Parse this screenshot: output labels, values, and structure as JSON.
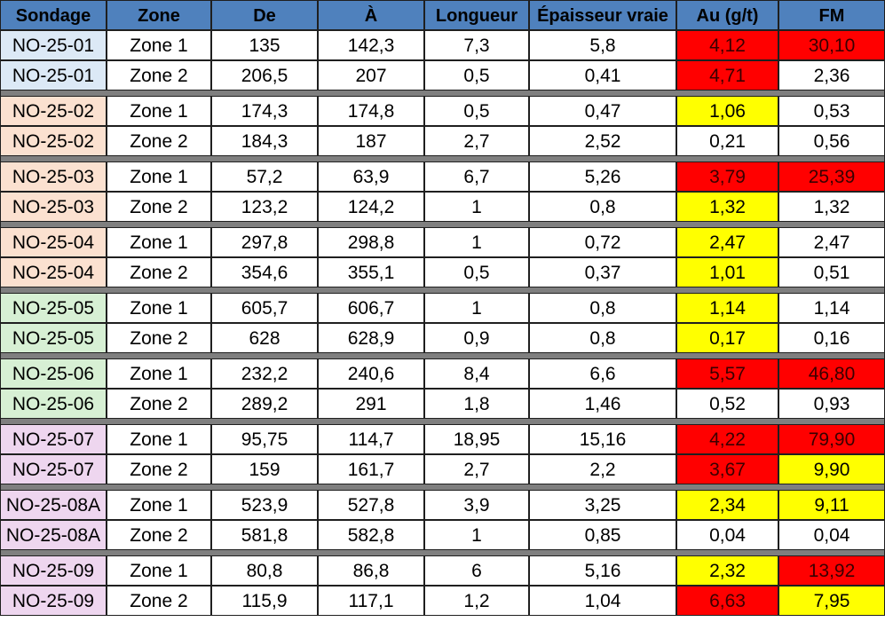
{
  "colors": {
    "header": "#4f81bd",
    "separator": "#7f7f7f",
    "red": "#ff0000",
    "yellow": "#ffff00",
    "blue": "#dce9f6",
    "orange": "#fbe1d0",
    "green": "#d7f0d4",
    "purple": "#eed6ef"
  },
  "headers": [
    "Sondage",
    "Zone",
    "De",
    "À",
    "Longueur",
    "Épaisseur vraie",
    "Au (g/t)",
    "FM"
  ],
  "groups": [
    {
      "tint": "blue",
      "rows": [
        {
          "sondage": "NO-25-01",
          "zone": "Zone 1",
          "de": "135",
          "a": "142,3",
          "longueur": "7,3",
          "epaisseur": "5,8",
          "au": "4,12",
          "au_hl": "red",
          "fm": "30,10",
          "fm_hl": "red"
        },
        {
          "sondage": "NO-25-01",
          "zone": "Zone 2",
          "de": "206,5",
          "a": "207",
          "longueur": "0,5",
          "epaisseur": "0,41",
          "au": "4,71",
          "au_hl": "red",
          "fm": "2,36",
          "fm_hl": ""
        }
      ]
    },
    {
      "tint": "orange",
      "rows": [
        {
          "sondage": "NO-25-02",
          "zone": "Zone 1",
          "de": "174,3",
          "a": "174,8",
          "longueur": "0,5",
          "epaisseur": "0,47",
          "au": "1,06",
          "au_hl": "yellow",
          "fm": "0,53",
          "fm_hl": ""
        },
        {
          "sondage": "NO-25-02",
          "zone": "Zone 2",
          "de": "184,3",
          "a": "187",
          "longueur": "2,7",
          "epaisseur": "2,52",
          "au": "0,21",
          "au_hl": "",
          "fm": "0,56",
          "fm_hl": ""
        }
      ]
    },
    {
      "tint": "orange",
      "rows": [
        {
          "sondage": "NO-25-03",
          "zone": "Zone 1",
          "de": "57,2",
          "a": "63,9",
          "longueur": "6,7",
          "epaisseur": "5,26",
          "au": "3,79",
          "au_hl": "red",
          "fm": "25,39",
          "fm_hl": "red"
        },
        {
          "sondage": "NO-25-03",
          "zone": "Zone 2",
          "de": "123,2",
          "a": "124,2",
          "longueur": "1",
          "epaisseur": "0,8",
          "au": "1,32",
          "au_hl": "yellow",
          "fm": "1,32",
          "fm_hl": ""
        }
      ]
    },
    {
      "tint": "orange",
      "rows": [
        {
          "sondage": "NO-25-04",
          "zone": "Zone 1",
          "de": "297,8",
          "a": "298,8",
          "longueur": "1",
          "epaisseur": "0,72",
          "au": "2,47",
          "au_hl": "yellow",
          "fm": "2,47",
          "fm_hl": ""
        },
        {
          "sondage": "NO-25-04",
          "zone": "Zone 2",
          "de": "354,6",
          "a": "355,1",
          "longueur": "0,5",
          "epaisseur": "0,37",
          "au": "1,01",
          "au_hl": "yellow",
          "fm": "0,51",
          "fm_hl": ""
        }
      ]
    },
    {
      "tint": "green",
      "rows": [
        {
          "sondage": "NO-25-05",
          "zone": "Zone 1",
          "de": "605,7",
          "a": "606,7",
          "longueur": "1",
          "epaisseur": "0,8",
          "au": "1,14",
          "au_hl": "yellow",
          "fm": "1,14",
          "fm_hl": ""
        },
        {
          "sondage": "NO-25-05",
          "zone": "Zone 2",
          "de": "628",
          "a": "628,9",
          "longueur": "0,9",
          "epaisseur": "0,8",
          "au": "0,17",
          "au_hl": "yellow",
          "fm": "0,16",
          "fm_hl": ""
        }
      ]
    },
    {
      "tint": "green",
      "rows": [
        {
          "sondage": "NO-25-06",
          "zone": "Zone 1",
          "de": "232,2",
          "a": "240,6",
          "longueur": "8,4",
          "epaisseur": "6,6",
          "au": "5,57",
          "au_hl": "red",
          "fm": "46,80",
          "fm_hl": "red"
        },
        {
          "sondage": "NO-25-06",
          "zone": "Zone 2",
          "de": "289,2",
          "a": "291",
          "longueur": "1,8",
          "epaisseur": "1,46",
          "au": "0,52",
          "au_hl": "",
          "fm": "0,93",
          "fm_hl": ""
        }
      ]
    },
    {
      "tint": "purple",
      "rows": [
        {
          "sondage": "NO-25-07",
          "zone": "Zone 1",
          "de": "95,75",
          "a": "114,7",
          "longueur": "18,95",
          "epaisseur": "15,16",
          "au": "4,22",
          "au_hl": "red",
          "fm": "79,90",
          "fm_hl": "red"
        },
        {
          "sondage": "NO-25-07",
          "zone": "Zone 2",
          "de": "159",
          "a": "161,7",
          "longueur": "2,7",
          "epaisseur": "2,2",
          "au": "3,67",
          "au_hl": "red",
          "fm": "9,90",
          "fm_hl": "yellow"
        }
      ]
    },
    {
      "tint": "purple",
      "rows": [
        {
          "sondage": "NO-25-08A",
          "zone": "Zone 1",
          "de": "523,9",
          "a": "527,8",
          "longueur": "3,9",
          "epaisseur": "3,25",
          "au": "2,34",
          "au_hl": "yellow",
          "fm": "9,11",
          "fm_hl": "yellow"
        },
        {
          "sondage": "NO-25-08A",
          "zone": "Zone 2",
          "de": "581,8",
          "a": "582,8",
          "longueur": "1",
          "epaisseur": "0,85",
          "au": "0,04",
          "au_hl": "",
          "fm": "0,04",
          "fm_hl": ""
        }
      ]
    },
    {
      "tint": "purple",
      "rows": [
        {
          "sondage": "NO-25-09",
          "zone": "Zone 1",
          "de": "80,8",
          "a": "86,8",
          "longueur": "6",
          "epaisseur": "5,16",
          "au": "2,32",
          "au_hl": "yellow",
          "fm": "13,92",
          "fm_hl": "red"
        },
        {
          "sondage": "NO-25-09",
          "zone": "Zone 2",
          "de": "115,9",
          "a": "117,1",
          "longueur": "1,2",
          "epaisseur": "1,04",
          "au": "6,63",
          "au_hl": "red",
          "fm": "7,95",
          "fm_hl": "yellow"
        }
      ]
    }
  ]
}
